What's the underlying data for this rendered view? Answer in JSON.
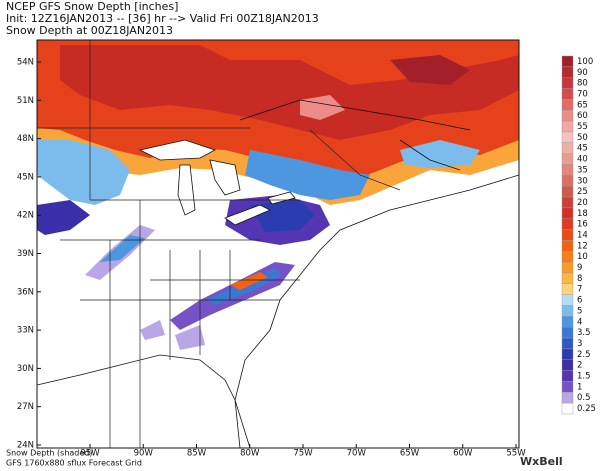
{
  "header": {
    "line1": "NCEP GFS Snow Depth [inches]",
    "line2": "Init: 12Z16JAN2013 -- [36] hr --> Valid Fri 00Z18JAN2013",
    "line3": "Snow Depth at 00Z18JAN2013"
  },
  "latitude_labels": [
    "54N",
    "51N",
    "48N",
    "45N",
    "42N",
    "39N",
    "36N",
    "33N",
    "30N",
    "27N",
    "24N"
  ],
  "longitude_labels": [
    "95W",
    "90W",
    "85W",
    "80W",
    "75W",
    "70W",
    "65W",
    "60W",
    "55W"
  ],
  "legend": [
    {
      "label": "100",
      "color": "#a3202a"
    },
    {
      "label": "90",
      "color": "#b8282f"
    },
    {
      "label": "80",
      "color": "#c8353a"
    },
    {
      "label": "70",
      "color": "#d84b4b"
    },
    {
      "label": "65",
      "color": "#e46a68"
    },
    {
      "label": "60",
      "color": "#ec8b88"
    },
    {
      "label": "55",
      "color": "#f2a8a4"
    },
    {
      "label": "50",
      "color": "#f6c2bd"
    },
    {
      "label": "45",
      "color": "#f0b0a8"
    },
    {
      "label": "40",
      "color": "#e99d92"
    },
    {
      "label": "35",
      "color": "#e2877b"
    },
    {
      "label": "30",
      "color": "#d97064"
    },
    {
      "label": "25",
      "color": "#d0594d"
    },
    {
      "label": "20",
      "color": "#c8413a"
    },
    {
      "label": "18",
      "color": "#d42f26"
    },
    {
      "label": "16",
      "color": "#e23a1c"
    },
    {
      "label": "14",
      "color": "#ec4a16"
    },
    {
      "label": "12",
      "color": "#f26214"
    },
    {
      "label": "10",
      "color": "#f77e18"
    },
    {
      "label": "9",
      "color": "#fa9a2a"
    },
    {
      "label": "8",
      "color": "#fcb545"
    },
    {
      "label": "7",
      "color": "#fdd27a"
    },
    {
      "label": "6",
      "color": "#b6dcf5"
    },
    {
      "label": "5",
      "color": "#7cbcec"
    },
    {
      "label": "4",
      "color": "#4c97e0"
    },
    {
      "label": "3.5",
      "color": "#3a78d4"
    },
    {
      "label": "3",
      "color": "#2f58c6"
    },
    {
      "label": "2.5",
      "color": "#2a3cb0"
    },
    {
      "label": "2",
      "color": "#3a2fa8"
    },
    {
      "label": "1.5",
      "color": "#5436b4"
    },
    {
      "label": "1",
      "color": "#7552c6"
    },
    {
      "label": "0.5",
      "color": "#b9a6e6"
    },
    {
      "label": "0.25",
      "color": "#ffffff"
    }
  ],
  "footer": {
    "line1": "Snow Depth (shaded)",
    "line2": "GFS 1760x880 sflux Forecast Grid",
    "logo": "WxBell"
  }
}
